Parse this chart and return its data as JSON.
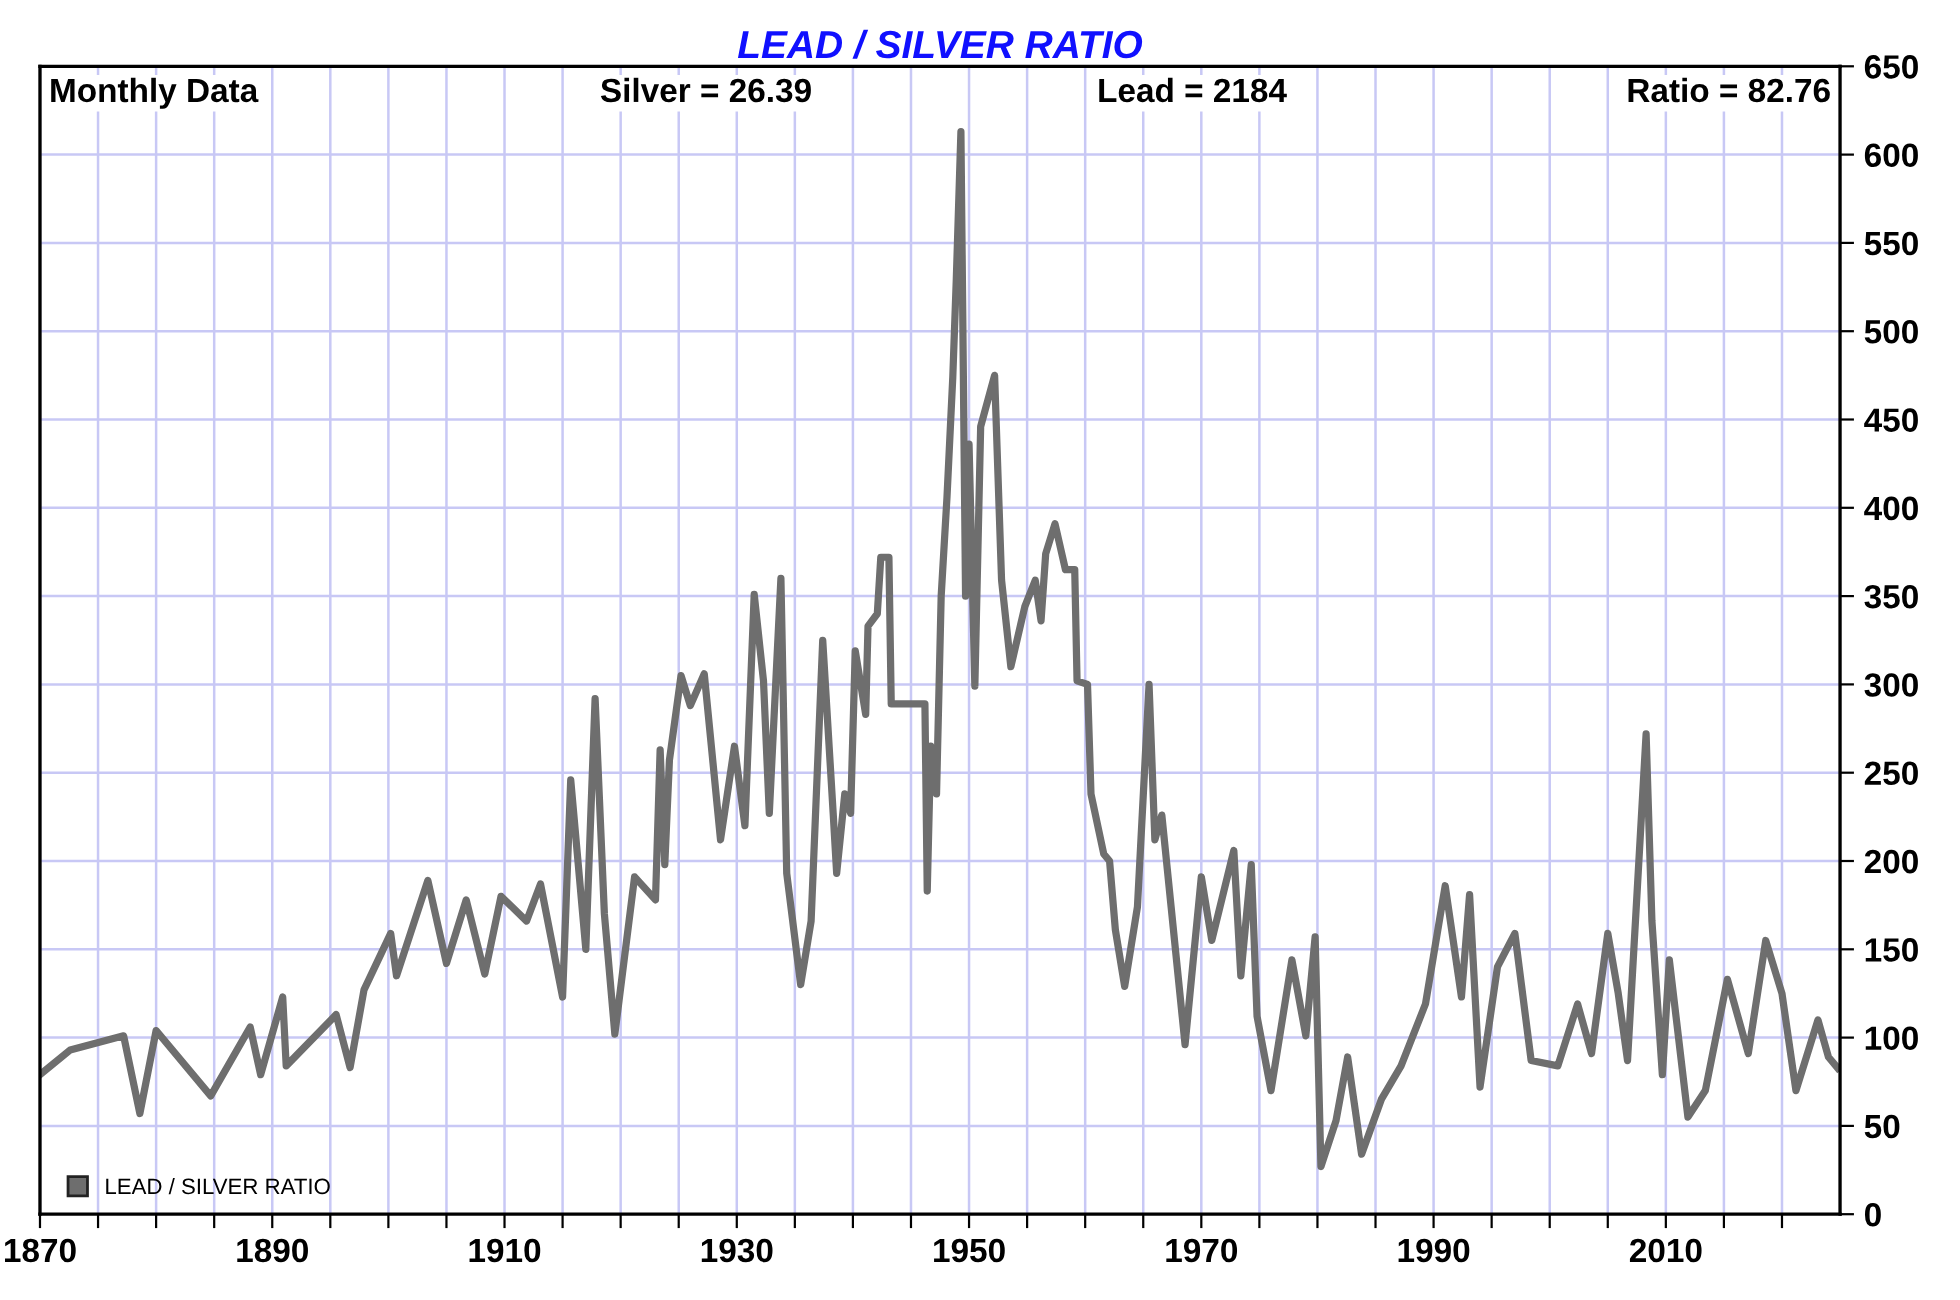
{
  "chart_data": {
    "type": "line",
    "title": "LEAD / SILVER RATIO",
    "annotations": [
      "Monthly Data",
      "Silver = 26.39",
      "Lead = 2184",
      "Ratio = 82.76"
    ],
    "series": [
      {
        "name": "LEAD / SILVER RATIO",
        "color": "#6e6e6e",
        "x": [
          1870.0,
          1872.6,
          1877.2,
          1878.6,
          1880.0,
          1884.7,
          1888.1,
          1889.0,
          1890.9,
          1891.2,
          1895.5,
          1896.7,
          1897.9,
          1900.2,
          1900.7,
          1903.4,
          1905.0,
          1906.7,
          1908.3,
          1909.7,
          1911.9,
          1913.1,
          1915.0,
          1915.7,
          1917.0,
          1917.8,
          1918.6,
          1919.5,
          1921.2,
          1923.0,
          1923.4,
          1923.8,
          1924.2,
          1925.2,
          1926.0,
          1927.2,
          1928.6,
          1929.8,
          1930.7,
          1931.5,
          1932.3,
          1932.8,
          1933.8,
          1934.3,
          1935.5,
          1936.4,
          1937.4,
          1938.3,
          1938.6,
          1939.3,
          1939.8,
          1940.2,
          1941.1,
          1941.3,
          1942.1,
          1942.4,
          1943.1,
          1943.3,
          1946.2,
          1946.4,
          1946.7,
          1947.2,
          1947.6,
          1948.1,
          1948.6,
          1948.9,
          1949.3,
          1949.7,
          1950.0,
          1950.5,
          1951.0,
          1952.2,
          1952.8,
          1953.6,
          1954.8,
          1955.7,
          1956.2,
          1956.6,
          1957.4,
          1958.3,
          1959.1,
          1959.3,
          1960.2,
          1960.5,
          1961.6,
          1962.1,
          1962.6,
          1963.4,
          1964.5,
          1965.5,
          1966.0,
          1966.6,
          1967.4,
          1968.6,
          1970.0,
          1970.9,
          1972.8,
          1973.4,
          1974.3,
          1974.8,
          1976.0,
          1977.8,
          1979.0,
          1979.8,
          1980.3,
          1981.6,
          1982.6,
          1983.8,
          1985.5,
          1987.2,
          1989.3,
          1991.0,
          1992.4,
          1993.1,
          1994.0,
          1995.5,
          1997.0,
          1998.4,
          2000.7,
          2002.4,
          2003.6,
          2005.0,
          2005.9,
          2006.7,
          2008.3,
          2008.8,
          2009.7,
          2010.3,
          2011.9,
          2013.4,
          2015.3,
          2017.1,
          2018.6,
          2020.0,
          2021.2,
          2023.1,
          2024.0,
          2024.8
        ],
        "values": [
          79,
          93,
          101,
          57,
          104,
          67,
          106,
          79,
          123,
          84,
          113,
          83,
          127,
          159,
          135,
          189,
          142,
          178,
          136,
          180,
          166,
          187,
          123,
          246,
          150,
          292,
          170,
          102,
          191,
          178,
          263,
          198,
          257,
          305,
          288,
          306,
          212,
          265,
          220,
          351,
          302,
          227,
          360,
          193,
          130,
          166,
          325,
          227,
          193,
          238,
          227,
          319,
          283,
          333,
          340,
          372,
          372,
          289,
          289,
          183,
          265,
          238,
          350,
          406,
          474,
          529,
          613,
          350,
          436,
          299,
          446,
          475,
          359,
          310,
          344,
          359,
          336,
          374,
          391,
          365,
          365,
          302,
          300,
          238,
          204,
          200,
          161,
          129,
          174,
          300,
          212,
          226,
          174,
          96,
          191,
          155,
          206,
          135,
          198,
          112,
          70,
          144,
          101,
          157,
          27,
          53,
          89,
          34,
          65,
          84,
          119,
          186,
          123,
          181,
          72,
          140,
          159,
          87,
          84,
          119,
          91,
          159,
          125,
          87,
          272,
          166,
          79,
          144,
          55,
          70,
          133,
          91,
          155,
          125,
          70,
          110,
          89,
          82.76
        ]
      }
    ],
    "xlim": [
      1870,
      2025
    ],
    "xticks": [
      1870,
      {
        "value": 1875,
        "label": null
      },
      {
        "value": 1880,
        "label": null
      },
      {
        "value": 1885,
        "label": null
      },
      1890,
      {
        "value": 1895,
        "label": null
      },
      {
        "value": 1900,
        "label": null
      },
      {
        "value": 1905,
        "label": null
      },
      1910,
      {
        "value": 1915,
        "label": null
      },
      {
        "value": 1920,
        "label": null
      },
      {
        "value": 1925,
        "label": null
      },
      1930,
      {
        "value": 1935,
        "label": null
      },
      {
        "value": 1940,
        "label": null
      },
      {
        "value": 1945,
        "label": null
      },
      1950,
      {
        "value": 1955,
        "label": null
      },
      {
        "value": 1960,
        "label": null
      },
      {
        "value": 1965,
        "label": null
      },
      1970,
      {
        "value": 1975,
        "label": null
      },
      {
        "value": 1980,
        "label": null
      },
      {
        "value": 1985,
        "label": null
      },
      1990,
      {
        "value": 1995,
        "label": null
      },
      {
        "value": 2000,
        "label": null
      },
      {
        "value": 2005,
        "label": null
      },
      2010,
      {
        "value": 2015,
        "label": null
      },
      {
        "value": 2020,
        "label": null
      }
    ],
    "ylim": [
      0,
      650
    ],
    "yticks": [
      0,
      50,
      100,
      150,
      200,
      250,
      300,
      350,
      400,
      450,
      500,
      550,
      600,
      650
    ],
    "grid": true,
    "legend": "bottom left",
    "line_style": "solid",
    "marker": "none"
  }
}
